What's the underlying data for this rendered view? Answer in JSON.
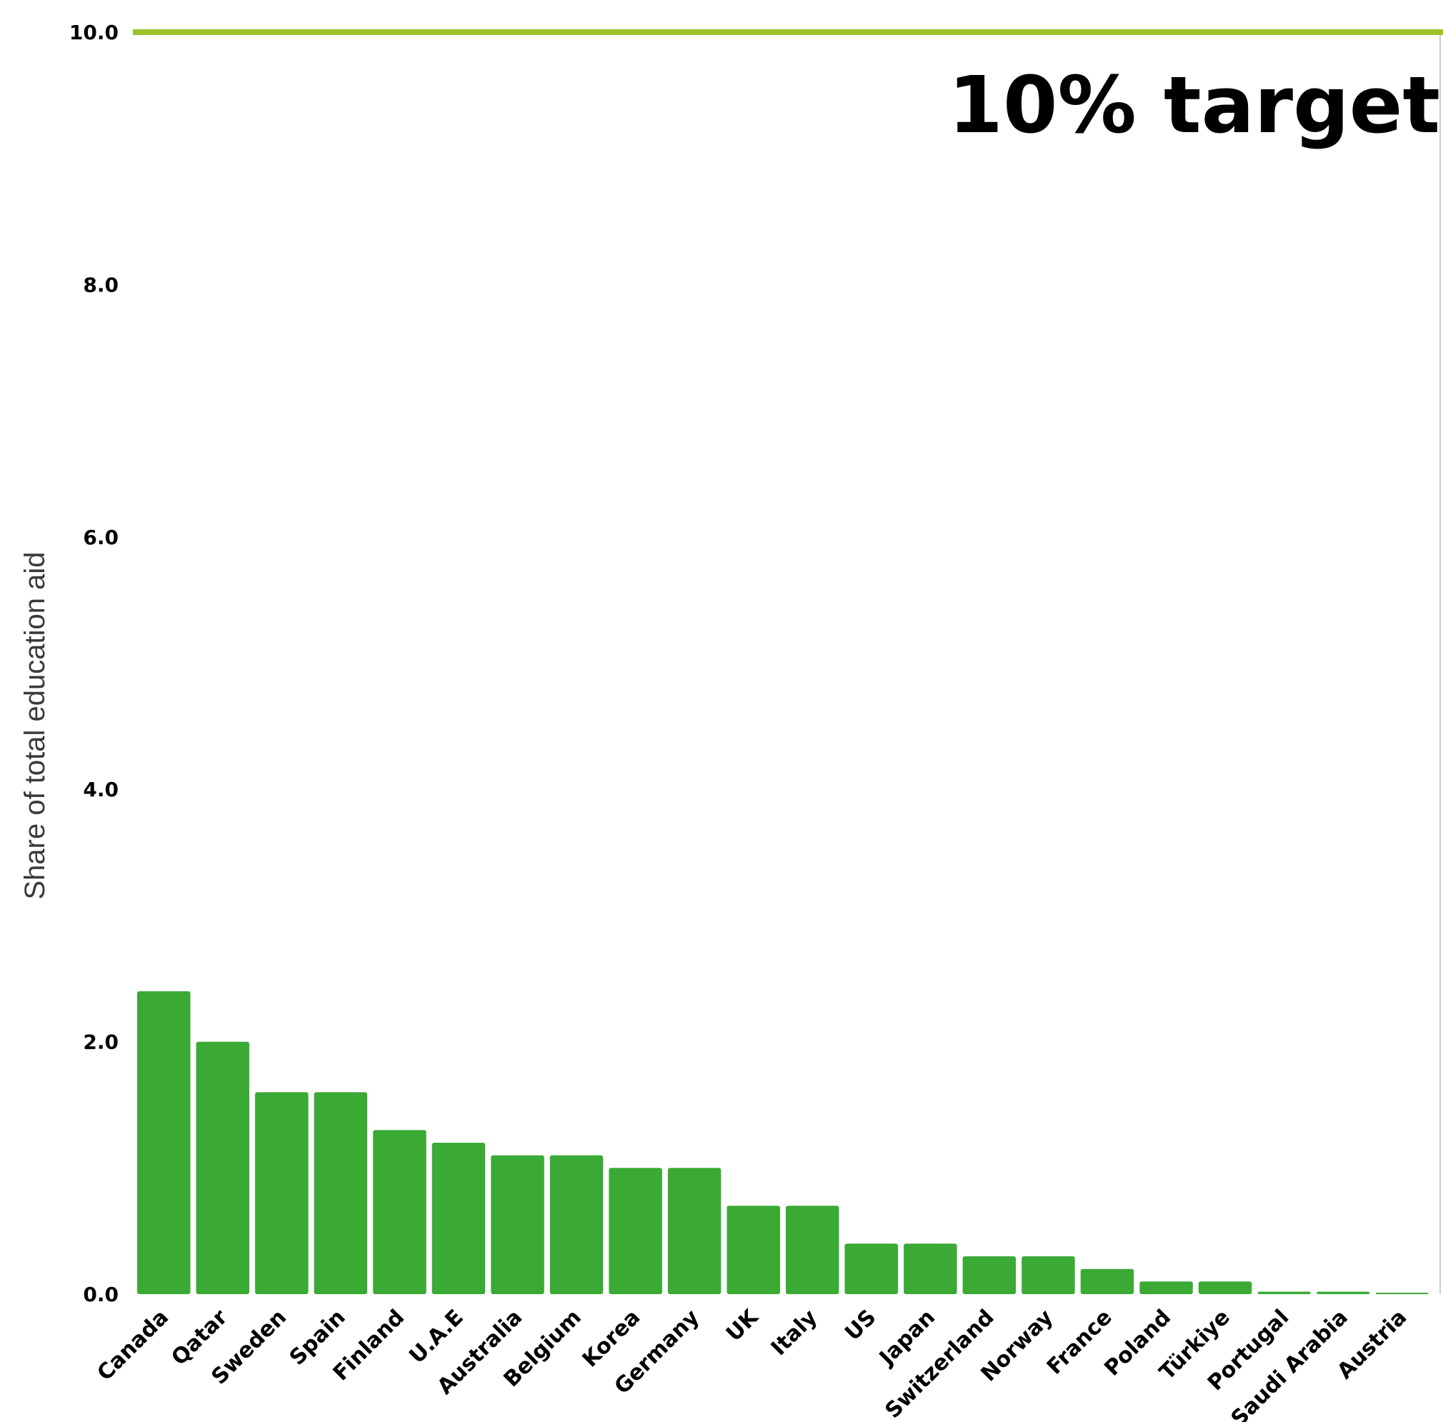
{
  "chart_data": {
    "type": "bar",
    "categories": [
      "Canada",
      "Qatar",
      "Sweden",
      "Spain",
      "Finland",
      "U.A.E",
      "Australia",
      "Belgium",
      "Korea",
      "Germany",
      "UK",
      "Italy",
      "US",
      "Japan",
      "Switzerland",
      "Norway",
      "France",
      "Poland",
      "Türkiye",
      "Portugal",
      "Saudi Arabia",
      "Austria"
    ],
    "values": [
      2.4,
      2.0,
      1.6,
      1.6,
      1.3,
      1.2,
      1.1,
      1.1,
      1.0,
      1.0,
      0.7,
      0.7,
      0.4,
      0.4,
      0.3,
      0.3,
      0.2,
      0.1,
      0.1,
      0.02,
      0.02,
      0.01
    ],
    "ylabel": "Share of total education aid",
    "xlabel": "",
    "ylim": [
      0,
      10
    ],
    "yticks": [
      "0.0",
      "2.0",
      "4.0",
      "6.0",
      "8.0",
      "10.0"
    ],
    "target": {
      "value": 10.0,
      "label": "10% target"
    },
    "grid": false,
    "colors": {
      "bar": "#3aaa35",
      "target_line": "#9ac32a",
      "text": "#000000"
    }
  }
}
